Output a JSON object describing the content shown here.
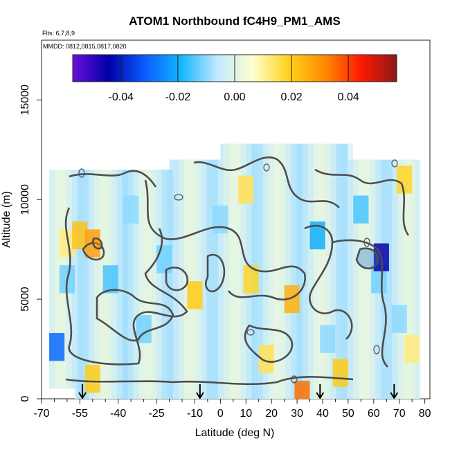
{
  "chart_data": {
    "type": "heatmap",
    "title": "ATOM1 Northbound fC4H9_PM1_AMS",
    "flights_label": "Flts: 6,7,8,9",
    "dates_label": "MMDD: 0812,0815,0817,0820",
    "xlabel": "Latitude (deg N)",
    "ylabel": "Altitude (m)",
    "xlim": [
      -70,
      82
    ],
    "ylim": [
      0,
      18000
    ],
    "x_ticks": [
      -70,
      -55,
      -40,
      -25,
      -10,
      0,
      10,
      20,
      30,
      40,
      50,
      60,
      70,
      80
    ],
    "y_ticks": [
      0,
      5000,
      10000,
      15000
    ],
    "colorbar": {
      "range": [
        -0.057,
        0.057
      ],
      "ticks": [
        -0.04,
        -0.02,
        0.0,
        0.02,
        0.04
      ],
      "tick_labels": [
        "-0.04",
        "-0.02",
        "0.00",
        "0.02",
        "0.04"
      ],
      "colors": [
        "#6a0fd8",
        "#0000a8",
        "#0a5cff",
        "#12b4ff",
        "#bfe8ff",
        "#ffffd0",
        "#ffd21a",
        "#ff8c00",
        "#ff1a00",
        "#8b1a1a"
      ]
    },
    "coverage": [
      {
        "lat_range": [
          -67,
          -57
        ],
        "alt_range": [
          500,
          11500
        ]
      },
      {
        "lat_range": [
          -57,
          -20
        ],
        "alt_range": [
          0,
          11500
        ]
      },
      {
        "lat_range": [
          -20,
          0
        ],
        "alt_range": [
          0,
          12000
        ]
      },
      {
        "lat_range": [
          0,
          50
        ],
        "alt_range": [
          0,
          12800
        ]
      },
      {
        "lat_range": [
          50,
          78
        ],
        "alt_range": [
          0,
          12000
        ]
      }
    ],
    "cells": [
      {
        "lat": -64,
        "alt": 2600,
        "value": -0.03
      },
      {
        "lat": -60,
        "alt": 6000,
        "value": -0.012
      },
      {
        "lat": -60,
        "alt": 7800,
        "value": 0.012
      },
      {
        "lat": -55,
        "alt": 8200,
        "value": 0.022
      },
      {
        "lat": -50,
        "alt": 7800,
        "value": 0.028
      },
      {
        "lat": -50,
        "alt": 1000,
        "value": 0.02
      },
      {
        "lat": -43,
        "alt": 6000,
        "value": -0.015
      },
      {
        "lat": -35,
        "alt": 9500,
        "value": -0.01
      },
      {
        "lat": -30,
        "alt": 3500,
        "value": -0.012
      },
      {
        "lat": -22,
        "alt": 7000,
        "value": -0.012
      },
      {
        "lat": -10,
        "alt": 5200,
        "value": 0.02
      },
      {
        "lat": 0,
        "alt": 9000,
        "value": -0.01
      },
      {
        "lat": 10,
        "alt": 10500,
        "value": 0.015
      },
      {
        "lat": 12,
        "alt": 6000,
        "value": 0.018
      },
      {
        "lat": 18,
        "alt": 2000,
        "value": 0.015
      },
      {
        "lat": 28,
        "alt": 5000,
        "value": 0.025
      },
      {
        "lat": 32,
        "alt": 200,
        "value": 0.035
      },
      {
        "lat": 38,
        "alt": 8200,
        "value": -0.02
      },
      {
        "lat": 42,
        "alt": 3000,
        "value": -0.01
      },
      {
        "lat": 47,
        "alt": 1300,
        "value": 0.02
      },
      {
        "lat": 55,
        "alt": 9500,
        "value": -0.015
      },
      {
        "lat": 62,
        "alt": 6000,
        "value": -0.012
      },
      {
        "lat": 63,
        "alt": 7100,
        "value": -0.045
      },
      {
        "lat": 70,
        "alt": 4000,
        "value": -0.01
      },
      {
        "lat": 72,
        "alt": 11000,
        "value": 0.018
      },
      {
        "lat": 75,
        "alt": 2500,
        "value": 0.012
      }
    ],
    "arrow_latitudes": [
      -54,
      -8,
      39,
      68
    ],
    "grid": false
  }
}
